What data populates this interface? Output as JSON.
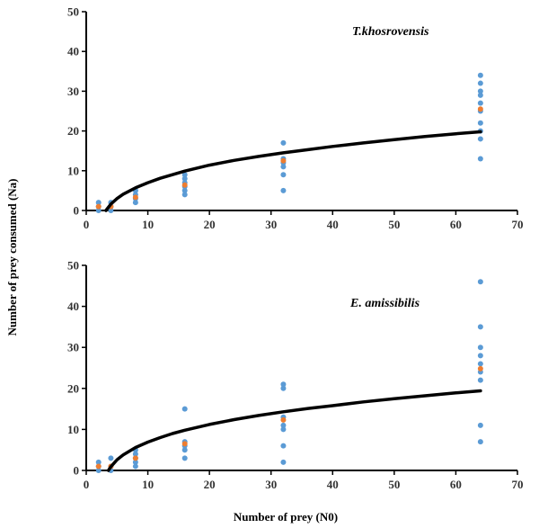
{
  "figure": {
    "ylabel": "Number of prey consumed (Na)",
    "xlabel": "Number of prey (N0)"
  },
  "colors": {
    "observed": "#5b9bd5",
    "mean": "#ed7d31",
    "fit": "#000000",
    "axis": "#000000",
    "tick_text": "#333333"
  },
  "chart_data": [
    {
      "type": "scatter",
      "title": "T.khosrovensis",
      "xlim": [
        0,
        70
      ],
      "ylim": [
        0,
        50
      ],
      "xticks": [
        0,
        10,
        20,
        30,
        40,
        50,
        60,
        70
      ],
      "yticks": [
        0,
        10,
        20,
        30,
        40,
        50
      ],
      "grid": false,
      "series": [
        {
          "type": "scatter",
          "x": [
            2,
            2,
            2,
            4,
            4,
            4,
            8,
            8,
            8,
            8,
            8,
            16,
            16,
            16,
            16,
            16,
            16,
            32,
            32,
            32,
            32,
            32,
            32,
            64,
            64,
            64,
            64,
            64,
            64,
            64,
            64,
            64,
            64
          ],
          "y": [
            0,
            1,
            2,
            0,
            1,
            2,
            2,
            3,
            4,
            5,
            5,
            4,
            5,
            6,
            7,
            8,
            9,
            5,
            9,
            11,
            12,
            13,
            17,
            13,
            18,
            22,
            25,
            27,
            29,
            30,
            32,
            34,
            20
          ]
        },
        {
          "type": "scatter",
          "x": [
            2,
            4,
            8,
            16,
            32,
            64
          ],
          "y": [
            1,
            1,
            3.3,
            6.4,
            12.5,
            25.5
          ]
        },
        {
          "type": "line",
          "x": [
            3.2,
            4,
            5,
            6,
            8,
            10,
            12,
            14,
            16,
            20,
            24,
            28,
            32,
            36,
            40,
            45,
            50,
            55,
            60,
            64
          ],
          "y": [
            0,
            1.6,
            3,
            4.1,
            5.7,
            7,
            8.1,
            9,
            9.9,
            11.4,
            12.6,
            13.6,
            14.5,
            15.3,
            16.1,
            17,
            17.8,
            18.6,
            19.3,
            19.8
          ]
        }
      ]
    },
    {
      "type": "scatter",
      "title": "E. amissibilis",
      "xlim": [
        0,
        70
      ],
      "ylim": [
        0,
        50
      ],
      "xticks": [
        0,
        10,
        20,
        30,
        40,
        50,
        60,
        70
      ],
      "yticks": [
        0,
        10,
        20,
        30,
        40,
        50
      ],
      "grid": false,
      "series": [
        {
          "type": "scatter",
          "x": [
            2,
            2,
            2,
            4,
            4,
            4,
            8,
            8,
            8,
            8,
            8,
            16,
            16,
            16,
            16,
            16,
            32,
            32,
            32,
            32,
            32,
            32,
            32,
            64,
            64,
            64,
            64,
            64,
            64,
            64,
            64,
            64
          ],
          "y": [
            0,
            1,
            2,
            0,
            1,
            3,
            1,
            2,
            3,
            4,
            5,
            3,
            5,
            6,
            7,
            15,
            2,
            6,
            10,
            11,
            13,
            20,
            21,
            7,
            11,
            22,
            24,
            26,
            28,
            30,
            35,
            46
          ]
        },
        {
          "type": "scatter",
          "x": [
            2,
            4,
            8,
            16,
            32,
            64
          ],
          "y": [
            1,
            1,
            3,
            6.5,
            12.3,
            24.8
          ]
        },
        {
          "type": "line",
          "x": [
            3.6,
            4,
            5,
            6,
            8,
            10,
            12,
            14,
            16,
            20,
            24,
            28,
            32,
            36,
            40,
            45,
            50,
            55,
            60,
            64
          ],
          "y": [
            0,
            0.9,
            2.6,
            3.8,
            5.6,
            6.9,
            8,
            9,
            9.8,
            11.2,
            12.4,
            13.4,
            14.3,
            15.1,
            15.8,
            16.7,
            17.5,
            18.2,
            18.9,
            19.4
          ]
        }
      ]
    }
  ]
}
